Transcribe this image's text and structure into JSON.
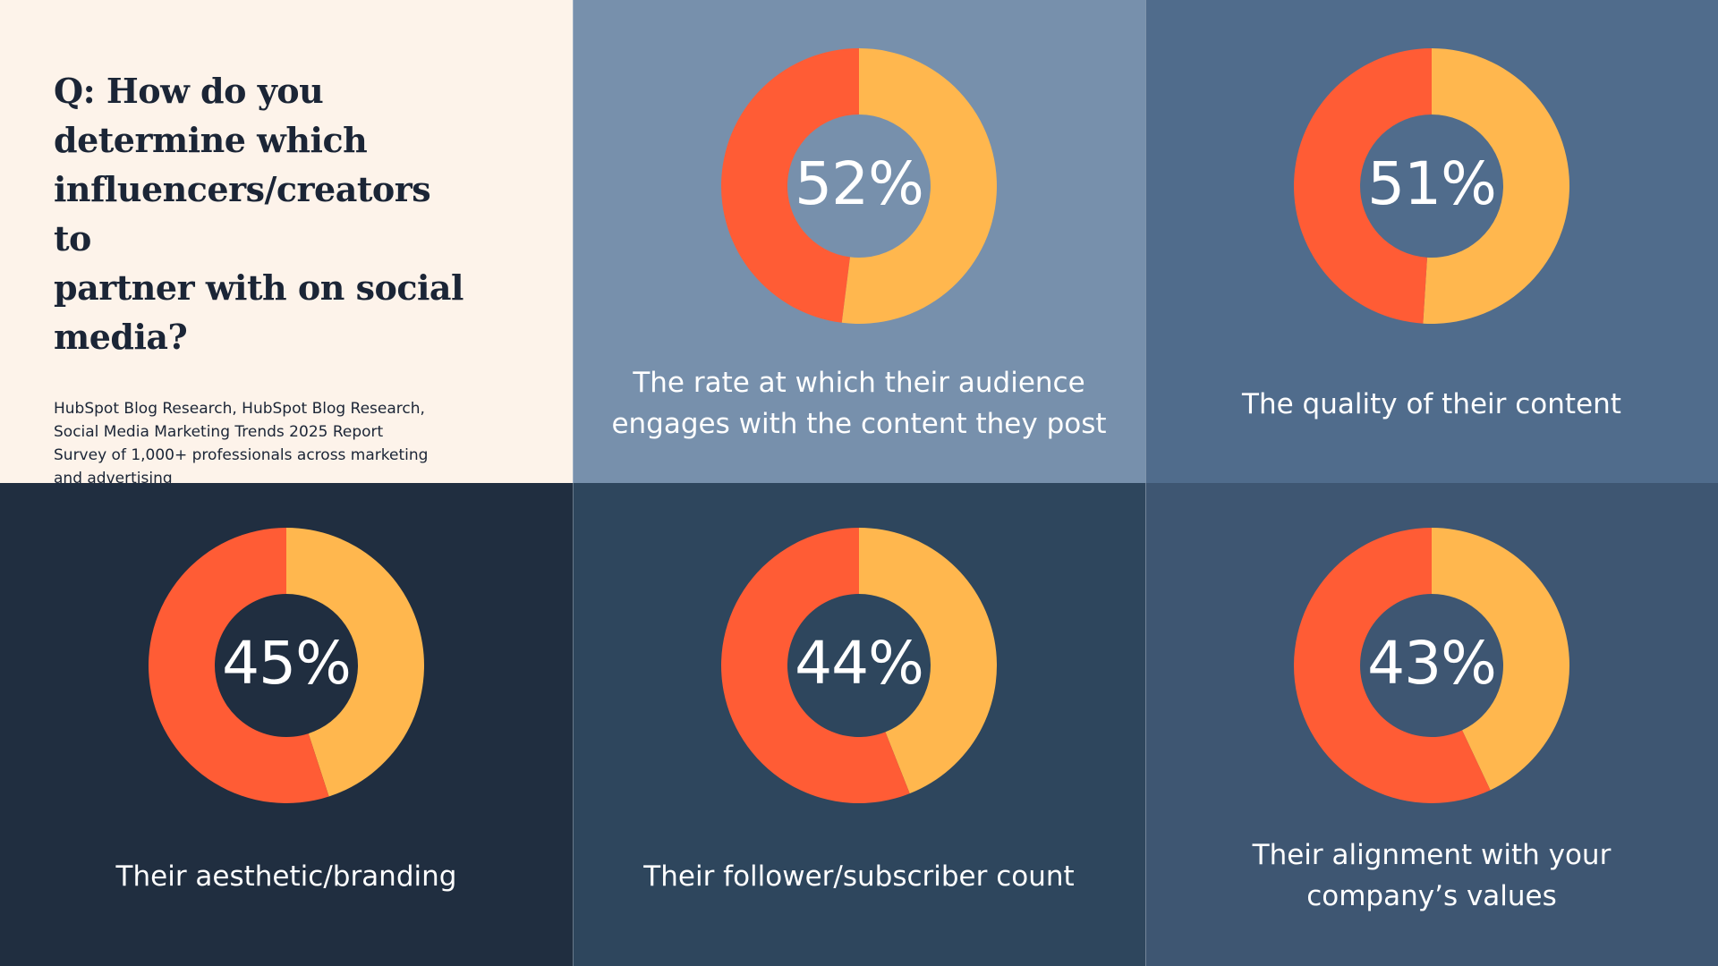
{
  "colors": {
    "intro_bg": "#FDF3EA",
    "intro_text": "#1B2536",
    "arc_primary": "#FF5C35",
    "arc_secondary": "#FFB74E",
    "panel_text": "#FFFFFF",
    "panels": [
      "#7790AC",
      "#506C8C",
      "#202E40",
      "#2E465D",
      "#3E5672"
    ]
  },
  "intro": {
    "question_lines": [
      "Q: How do you",
      "determine which",
      "influencers/creators to",
      "partner with on social",
      "media?"
    ],
    "source_lines": [
      "HubSpot Blog Research, HubSpot Blog Research,",
      "Social Media Marketing Trends 2025 Report",
      "Survey of 1,000+ professionals across marketing",
      "and advertising"
    ]
  },
  "chart_data": {
    "type": "pie",
    "series": [
      {
        "value": 52,
        "value_label": "52%",
        "label_lines": [
          "The rate at which their audience",
          "engages with the content they post"
        ]
      },
      {
        "value": 51,
        "value_label": "51%",
        "label_lines": [
          "The quality of their content"
        ]
      },
      {
        "value": 45,
        "value_label": "45%",
        "label_lines": [
          "Their aesthetic/branding"
        ]
      },
      {
        "value": 44,
        "value_label": "44%",
        "label_lines": [
          "Their follower/subscriber count"
        ]
      },
      {
        "value": 43,
        "value_label": "43%",
        "label_lines": [
          "Their alignment with your",
          "company’s values"
        ]
      }
    ]
  }
}
